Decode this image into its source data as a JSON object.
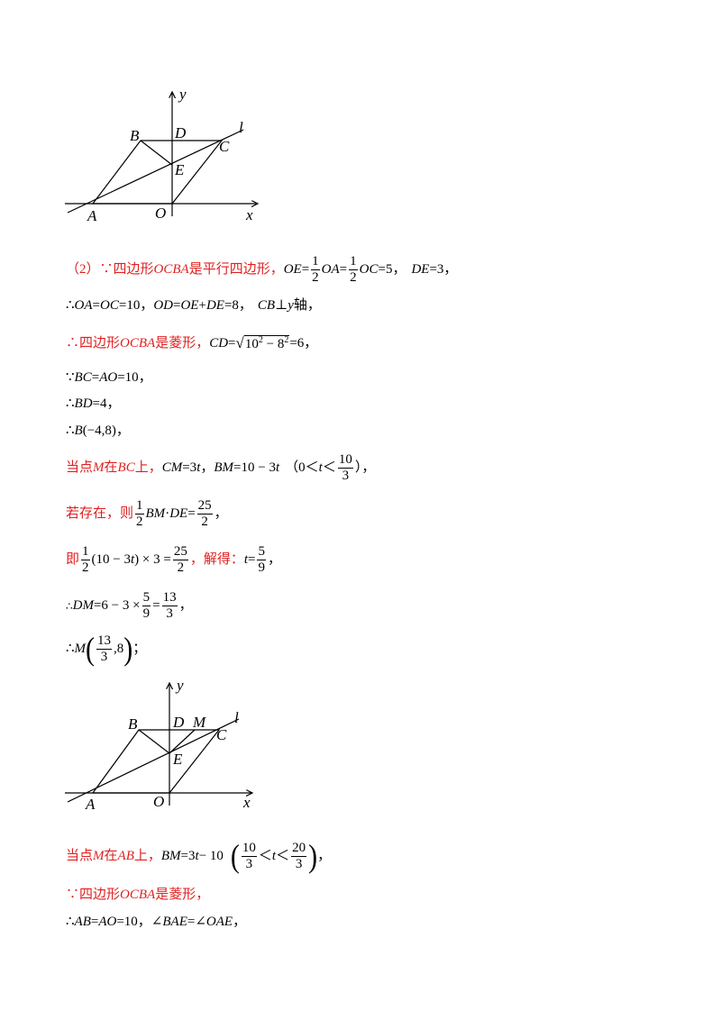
{
  "figure1": {
    "labels": {
      "y": "y",
      "B": "B",
      "D": "D",
      "l": "l",
      "C": "C",
      "E": "E",
      "A": "A",
      "O": "O",
      "x": "x"
    }
  },
  "figure2": {
    "labels": {
      "y": "y",
      "B": "B",
      "D": "D",
      "M": "M",
      "l": "l",
      "C": "C",
      "E": "E",
      "A": "A",
      "O": "O",
      "x": "x"
    }
  },
  "lines": {
    "l1": {
      "a": "（2）∵四边形",
      "b": "OCBA",
      "c": "是平行四边形，",
      "d": "OE",
      "e": "=",
      "f1n": "1",
      "f1d": "2",
      "g": "OA",
      "h": "=",
      "f2n": "1",
      "f2d": "2",
      "i": "OC",
      "j": "=5，",
      "k": "DE",
      "m": "=3，"
    },
    "l2": {
      "a": "∴",
      "b": "OA",
      "c": "=",
      "d": "OC",
      "e": "=10，",
      "f": "OD",
      "g": "=",
      "h": "OE",
      "i": "+",
      "j": "DE",
      "k": "=8，",
      "m": "CB",
      "n": " ⊥ ",
      "o": "y",
      "p": "轴，"
    },
    "l3": {
      "a": "∴四边形",
      "b": "OCBA",
      "c": "是菱形，",
      "d": "CD",
      "e": "=",
      "r1": "10",
      "r2": "2",
      "r3": " − 8",
      "r4": "2",
      "f": "=6，"
    },
    "l4": {
      "a": "∵",
      "b": "BC",
      "c": "=",
      "d": "AO",
      "e": "=10，"
    },
    "l5": {
      "a": "∴",
      "b": "BD",
      "c": "=4，"
    },
    "l6": {
      "a": "∴",
      "b": "B",
      "c": "(−4,8)，"
    },
    "l7": {
      "a": "当点",
      "b": "M",
      "c": "在",
      "d": "BC",
      "e": "上，",
      "f": "CM",
      "g": "=3",
      "h": "t",
      "i": "，",
      "j": "BM",
      "k": "=10 − 3",
      "m": "t",
      "n": "（0＜",
      "o": "t",
      "p": "＜",
      "fn": "10",
      "fd": "3",
      "q": "），"
    },
    "l8": {
      "a": "若存在，则",
      "fn": "1",
      "fd": "2",
      "b": "BM",
      "c": " · ",
      "d": "DE",
      "e": "=",
      "gn": "25",
      "gd": "2",
      "f": "，"
    },
    "l9": {
      "a": "即",
      "fn": "1",
      "fd": "2",
      "b": "(10 − 3",
      "c": "t",
      "d": ") × 3 =",
      "gn": "25",
      "gd": "2",
      "e": "，解得：",
      "f": "t",
      "g": "=",
      "hn": "5",
      "hd": "9",
      "i": "，"
    },
    "l10": {
      "a": "∴",
      "b": "DM",
      "c": "=6 − 3 ×",
      "fn": "5",
      "fd": "9",
      "d": "=",
      "gn": "13",
      "gd": "3",
      "e": "，"
    },
    "l11": {
      "a": "∴",
      "b": "M",
      "fn": "13",
      "fd": "3",
      "c": ",8",
      "e": "；"
    },
    "l12": {
      "a": "当点",
      "b": "M",
      "c": "在",
      "d": "AB",
      "e": "上，",
      "f": "BM",
      "g": "=3",
      "h": "t",
      "i": " − 10",
      "fn": "10",
      "fd": "3",
      "j": "＜",
      "k": "t",
      "m": "＜",
      "gn": "20",
      "gd": "3",
      "n": "，"
    },
    "l13": {
      "a": "∵四边形",
      "b": "OCBA",
      "c": "是菱形，"
    },
    "l14": {
      "a": "∴",
      "b": "AB",
      "c": "=",
      "d": "AO",
      "e": "=10，∠",
      "f": "BAE",
      "g": "=∠",
      "h": "OAE",
      "i": "，"
    }
  }
}
